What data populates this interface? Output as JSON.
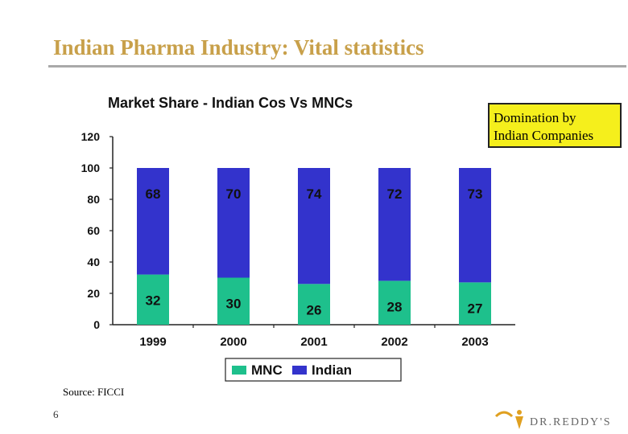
{
  "slide": {
    "title": "Indian Pharma Industry: Vital statistics",
    "callout_line1": "Domination by",
    "callout_line2": "Indian Companies",
    "source": "Source: FICCI",
    "page_number": "6",
    "logo_text": "DR.REDDY'S",
    "title_color": "#c8a04a",
    "callout_color": "#f5ef1c"
  },
  "chart_data": {
    "type": "bar",
    "stacked": true,
    "title": "Market Share - Indian Cos Vs MNCs",
    "categories": [
      "1999",
      "2000",
      "2001",
      "2002",
      "2003"
    ],
    "series": [
      {
        "name": "MNC",
        "values": [
          32,
          30,
          26,
          28,
          27
        ],
        "color": "#1ec08c"
      },
      {
        "name": "Indian",
        "values": [
          68,
          70,
          74,
          72,
          73
        ],
        "color": "#3333cc"
      }
    ],
    "ylim": [
      0,
      120
    ],
    "yticks": [
      0,
      20,
      40,
      60,
      80,
      100,
      120
    ],
    "xlabel": "",
    "ylabel": "",
    "legend_position": "bottom",
    "grid": false
  }
}
